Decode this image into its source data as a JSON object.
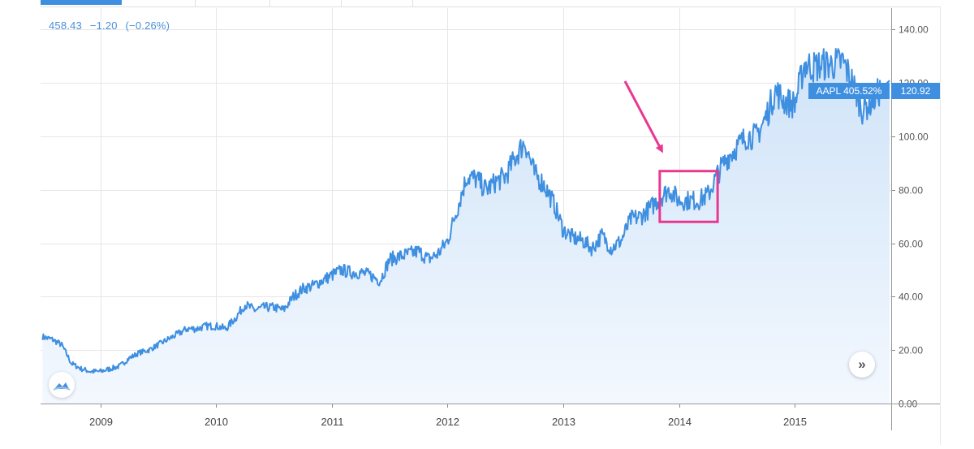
{
  "readout": {
    "last": "458.43",
    "change": "−1.20",
    "change_pct": "(−0.26%)"
  },
  "price_badge": {
    "series_label": "AAPL 405.52%",
    "value": "120.92"
  },
  "colors": {
    "line": "#3f8fe0",
    "fill_top": "#cfe3f8",
    "fill_bottom": "#f3f8fe",
    "badge": "#3f8fe0",
    "annotation": "#e8388f",
    "grid": "#e6e6e6"
  },
  "icons": {
    "scroll_right": "double-chevron-right-icon",
    "logo": "tradingview-cloud-icon"
  },
  "scroll_label": "»",
  "chart_data": {
    "type": "area",
    "series": [
      {
        "x": [
          "2008-07",
          "2008-08",
          "2008-09",
          "2008-10",
          "2008-11",
          "2008-12",
          "2009-01",
          "2009-02",
          "2009-03",
          "2009-04",
          "2009-05",
          "2009-06",
          "2009-07",
          "2009-08",
          "2009-09",
          "2009-10",
          "2009-11",
          "2009-12",
          "2010-01",
          "2010-02",
          "2010-03",
          "2010-04",
          "2010-05",
          "2010-06",
          "2010-07",
          "2010-08",
          "2010-09",
          "2010-10",
          "2010-11",
          "2010-12",
          "2011-01",
          "2011-02",
          "2011-03",
          "2011-04",
          "2011-05",
          "2011-06",
          "2011-07",
          "2011-08",
          "2011-09",
          "2011-10",
          "2011-11",
          "2011-12",
          "2012-01",
          "2012-02",
          "2012-03",
          "2012-04",
          "2012-05",
          "2012-06",
          "2012-07",
          "2012-08",
          "2012-09",
          "2012-10",
          "2012-11",
          "2012-12",
          "2013-01",
          "2013-02",
          "2013-03",
          "2013-04",
          "2013-05",
          "2013-06",
          "2013-07",
          "2013-08",
          "2013-09",
          "2013-10",
          "2013-11",
          "2013-12",
          "2014-01",
          "2014-02",
          "2014-03",
          "2014-04",
          "2014-05",
          "2014-06",
          "2014-07",
          "2014-08",
          "2014-09",
          "2014-10",
          "2014-11",
          "2014-12",
          "2015-01",
          "2015-02",
          "2015-03",
          "2015-04",
          "2015-05",
          "2015-06",
          "2015-07",
          "2015-08",
          "2015-09",
          "2015-10"
        ],
        "values": [
          25,
          24,
          22,
          15,
          13,
          12,
          12,
          13,
          14,
          17,
          19,
          20,
          22,
          24,
          26,
          28,
          28,
          29,
          29,
          28,
          32,
          37,
          35,
          36,
          36,
          35,
          40,
          43,
          44,
          46,
          48,
          50,
          49,
          49,
          48,
          46,
          54,
          55,
          56,
          57,
          54,
          56,
          61,
          73,
          85,
          84,
          80,
          83,
          85,
          92,
          98,
          86,
          82,
          75,
          65,
          62,
          61,
          58,
          63,
          58,
          61,
          69,
          70,
          73,
          77,
          80,
          76,
          76,
          76,
          78,
          86,
          92,
          96,
          100,
          100,
          107,
          117,
          113,
          112,
          127,
          126,
          127,
          127,
          128,
          120,
          110,
          113,
          118
        ]
      }
    ],
    "ylim": [
      0,
      148
    ],
    "yticks": [
      "0.00",
      "20.00",
      "40.00",
      "60.00",
      "80.00",
      "100.00",
      "120.00",
      "140.00"
    ],
    "xticks": [
      "2009",
      "2010",
      "2011",
      "2012",
      "2013",
      "2014",
      "2015"
    ],
    "grid": true,
    "annotations": [
      {
        "type": "arrow",
        "color": "#e8388f"
      },
      {
        "type": "box",
        "x": [
          "2013-11",
          "2014-05"
        ],
        "y": [
          68,
          87
        ],
        "color": "#e8388f"
      }
    ]
  }
}
